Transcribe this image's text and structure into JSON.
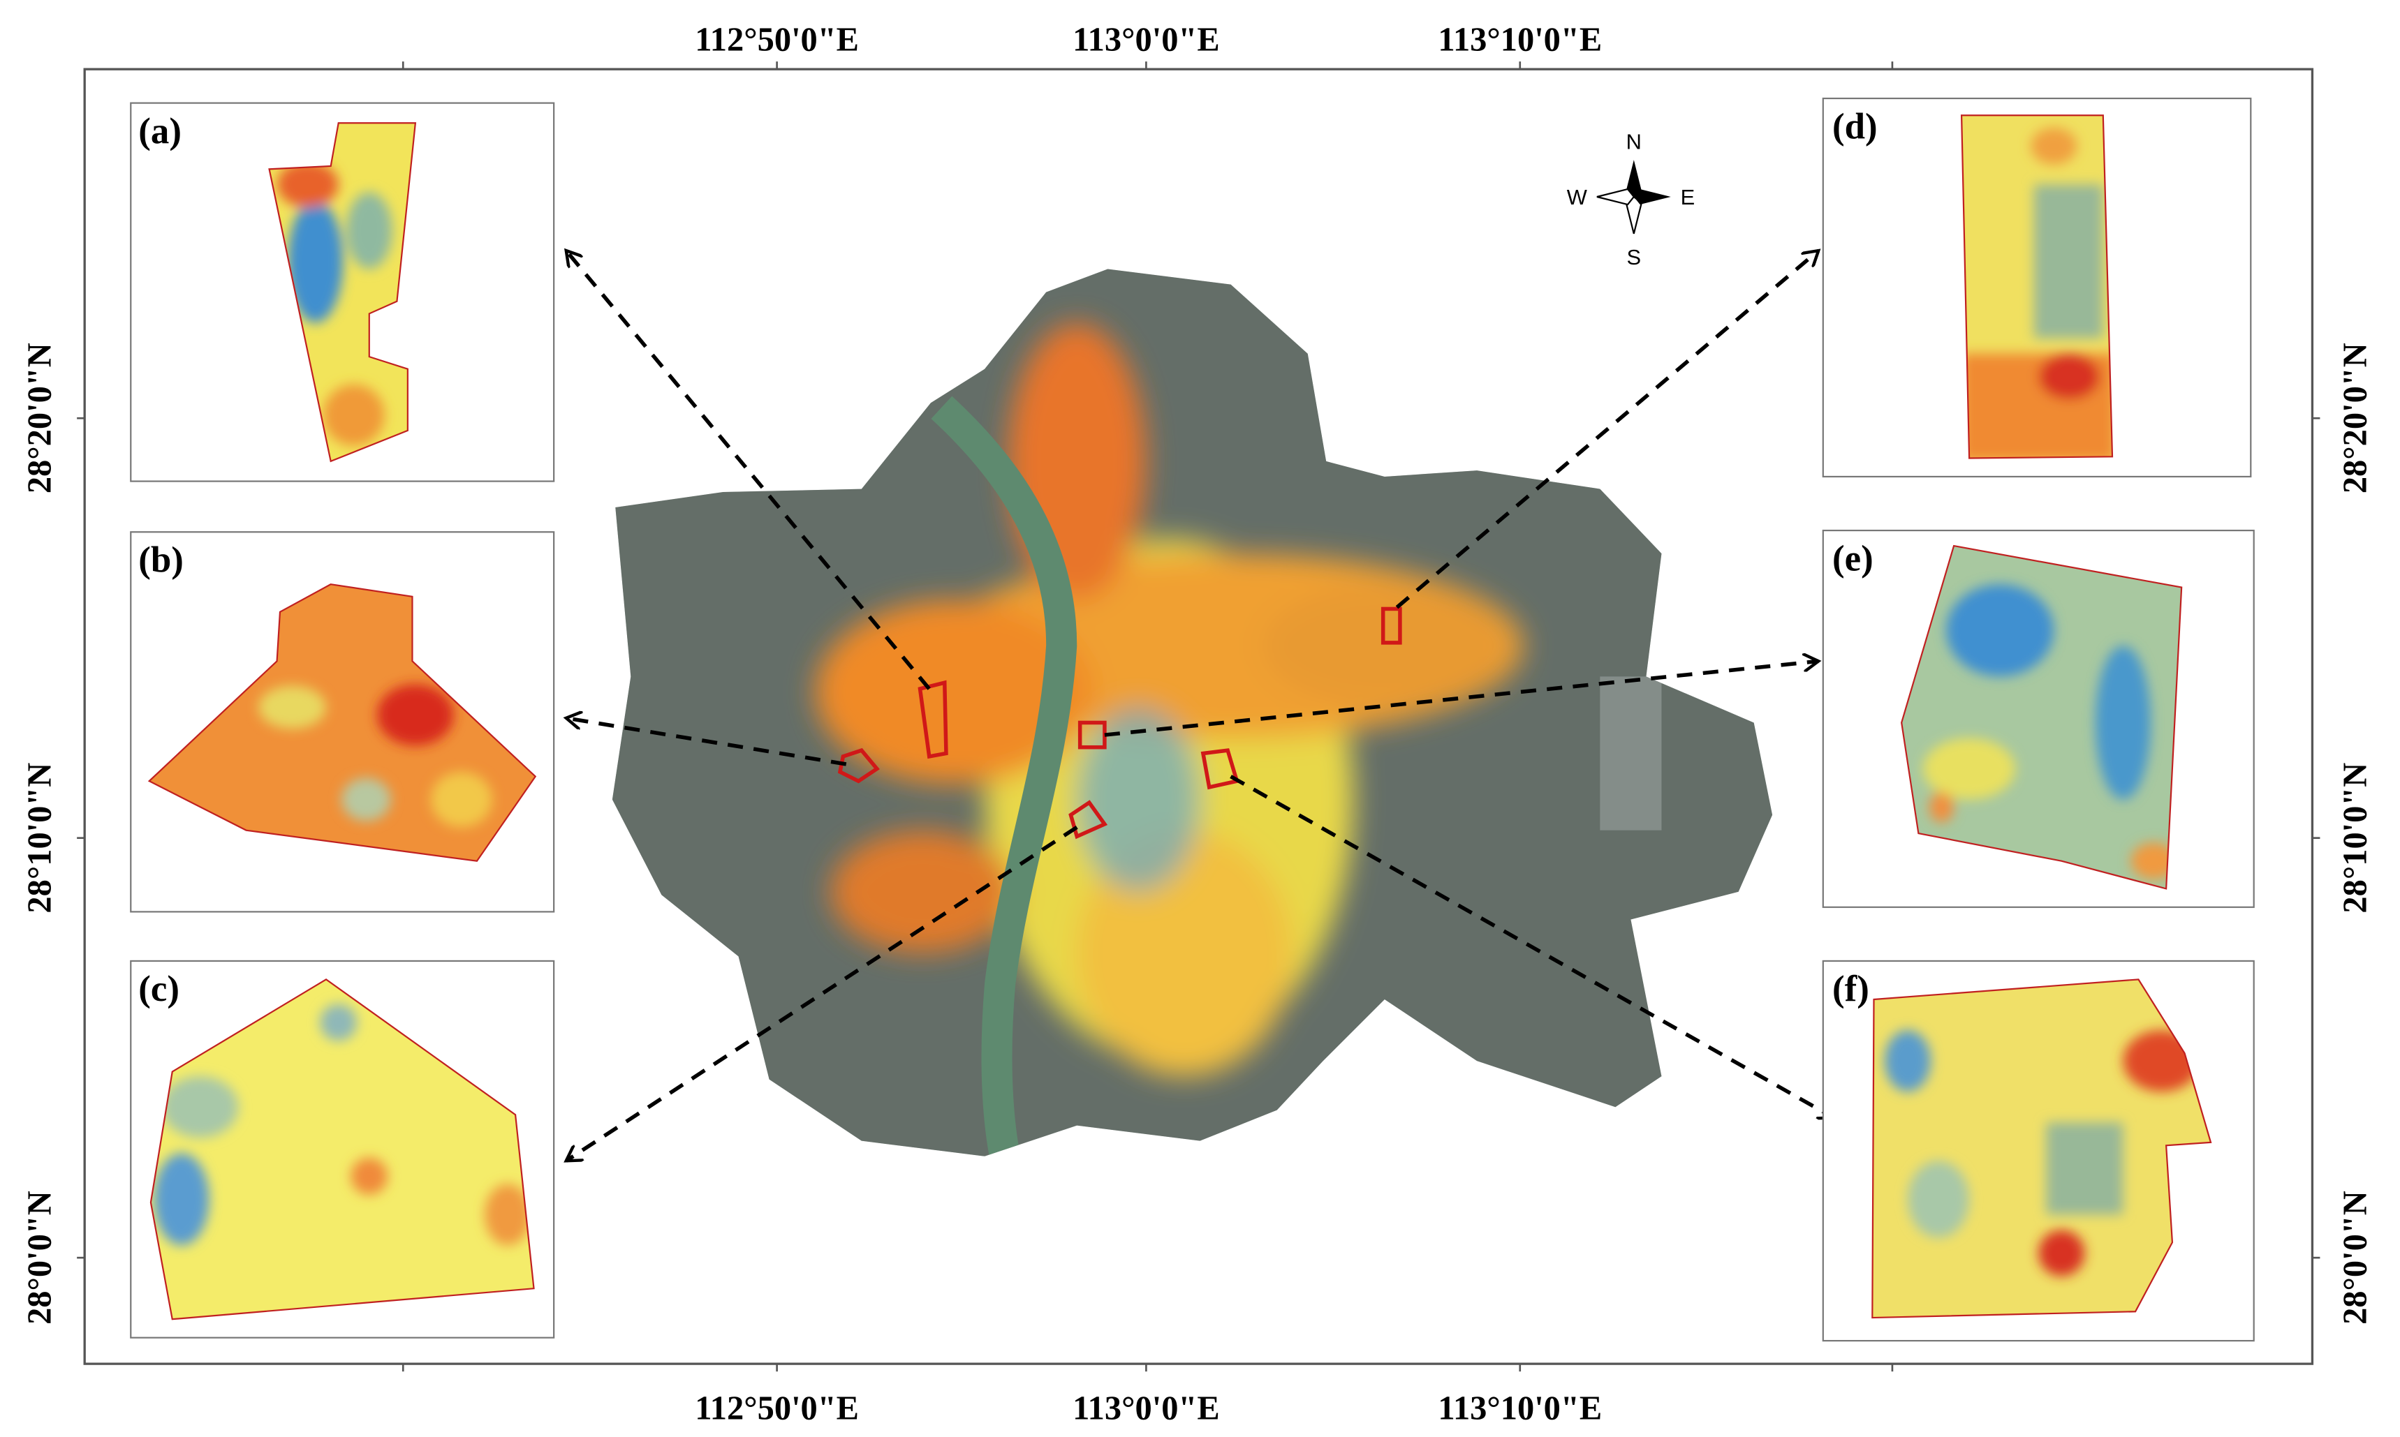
{
  "map": {
    "top_labels": [
      "112°50'0\"E",
      "113°0'0\"E",
      "113°10'0\"E"
    ],
    "bottom_labels": [
      "112°50'0\"E",
      "113°0'0\"E",
      "113°10'0\"E"
    ],
    "left_labels": [
      "28°20'0\"N",
      "28°10'0\"N",
      "28°0'0\"N"
    ],
    "right_labels": [
      "28°20'0\"N",
      "28°10'0\"N",
      "28°0'0\"N"
    ],
    "panels": [
      "(a)",
      "(b)",
      "(c)",
      "(d)",
      "(e)",
      "(f)"
    ],
    "compass": {
      "n": "N",
      "s": "S",
      "e": "E",
      "w": "W"
    }
  }
}
